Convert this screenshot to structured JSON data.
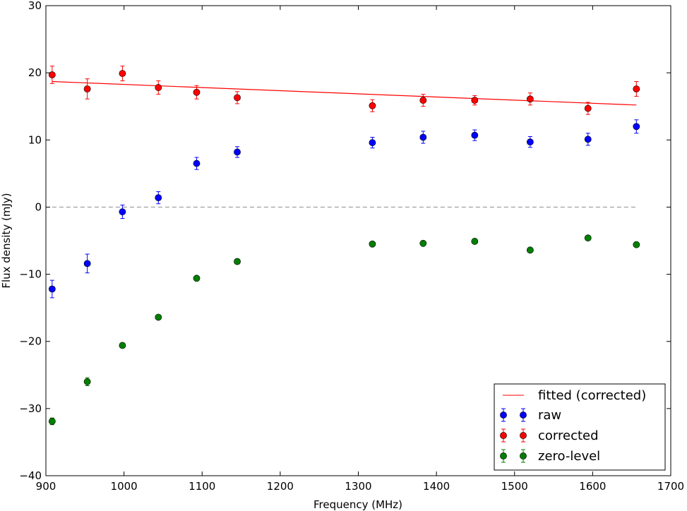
{
  "chart_data": {
    "type": "scatter",
    "xlabel": "Frequency (MHz)",
    "ylabel": "Flux density (mJy)",
    "xlim": [
      900,
      1700
    ],
    "ylim": [
      -40,
      30
    ],
    "xticks": [
      900,
      1000,
      1100,
      1200,
      1300,
      1400,
      1500,
      1600,
      1700
    ],
    "yticks": [
      -40,
      -30,
      -20,
      -10,
      0,
      10,
      20,
      30
    ],
    "x": [
      908,
      953,
      998,
      1044,
      1093,
      1145,
      1318,
      1383,
      1449,
      1520,
      1594,
      1656
    ],
    "series": [
      {
        "name": "raw",
        "color": "#0000ff",
        "values": [
          -12.2,
          -8.4,
          -0.7,
          1.4,
          6.5,
          8.2,
          9.6,
          10.4,
          10.7,
          9.7,
          10.1,
          12.0
        ],
        "errors": [
          1.3,
          1.4,
          1.0,
          0.9,
          0.9,
          0.8,
          0.8,
          0.9,
          0.8,
          0.8,
          0.9,
          1.0
        ]
      },
      {
        "name": "corrected",
        "color": "#ff0000",
        "values": [
          19.7,
          17.6,
          19.9,
          17.8,
          17.1,
          16.3,
          15.1,
          15.9,
          15.9,
          16.1,
          14.7,
          17.6
        ],
        "errors": [
          1.3,
          1.5,
          1.1,
          1.0,
          1.0,
          0.9,
          0.9,
          0.9,
          0.7,
          0.9,
          0.9,
          1.1
        ]
      },
      {
        "name": "zero-level",
        "color": "#007f00",
        "values": [
          -31.9,
          -26.0,
          -20.6,
          -16.4,
          -10.6,
          -8.1,
          -5.5,
          -5.4,
          -5.1,
          -6.4,
          -4.6,
          -5.6
        ],
        "errors": [
          0.5,
          0.6,
          0.3,
          0.3,
          0.3,
          0.3,
          0.3,
          0.3,
          0.3,
          0.3,
          0.3,
          0.3
        ]
      }
    ],
    "fit_line": {
      "name": "fitted (corrected)",
      "color": "#ff0000",
      "x": [
        908,
        1656
      ],
      "y": [
        18.7,
        15.2
      ]
    },
    "reference_line": {
      "y": 0,
      "color": "#999999",
      "style": "dashed",
      "x": [
        908,
        1656
      ]
    },
    "legend": {
      "placement": "bottom-right",
      "entries": [
        "fitted (corrected)",
        "raw",
        "corrected",
        "zero-level"
      ]
    },
    "grid": false
  }
}
